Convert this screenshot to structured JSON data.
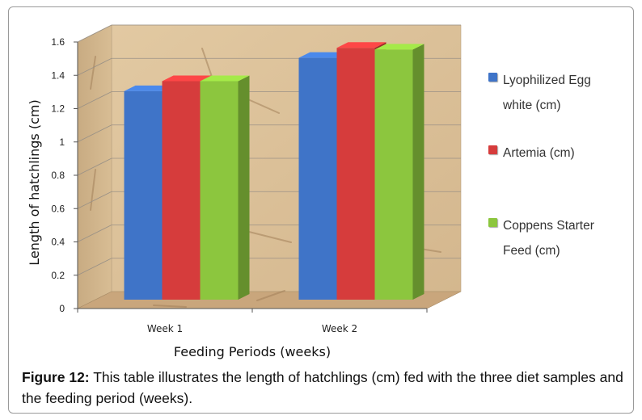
{
  "chart_data": {
    "type": "bar",
    "title": "",
    "xlabel": "Feeding Periods (weeks)",
    "ylabel": "Length of hatchlings (cm)",
    "categories": [
      "Week 1",
      "Week 2"
    ],
    "series": [
      {
        "name": "Lyophilized Egg white (cm)",
        "values": [
          1.3,
          1.5
        ],
        "color": "#3f74c8"
      },
      {
        "name": "Artemia (cm)",
        "values": [
          1.36,
          1.56
        ],
        "color": "#d63c3c"
      },
      {
        "name": "Coppens Starter Feed (cm)",
        "values": [
          1.36,
          1.55
        ],
        "color": "#8cc63e"
      }
    ],
    "yticks": [
      "0",
      "0.2",
      "0.4",
      "0.6",
      "0.8",
      "1",
      "1.2",
      "1.4",
      "1.6"
    ],
    "ylim": [
      0,
      1.6
    ],
    "grid": true,
    "legend_position": "right",
    "style": "3d-clustered-column"
  },
  "caption": {
    "label": "Figure 12:",
    "text": "This table illustrates the length of hatchlings (cm) fed with the three diet samples and the feeding period (weeks)."
  },
  "colors": {
    "wall": "#dcc199",
    "floor": "#c9a67c",
    "grid": "#9a9186",
    "axis": "#555555"
  }
}
